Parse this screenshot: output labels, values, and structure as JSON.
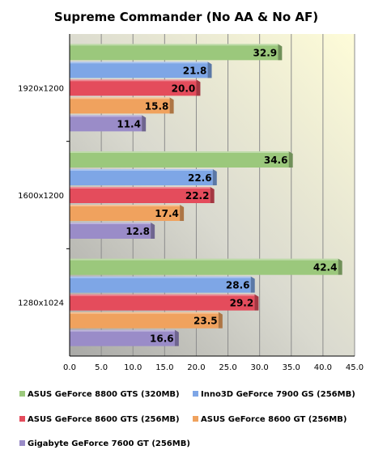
{
  "chart_data": {
    "type": "bar",
    "orientation": "horizontal",
    "title": "Supreme Commander  (No AA & No AF)",
    "xlabel": "",
    "ylabel": "",
    "xlim": [
      0,
      45
    ],
    "x_ticks": [
      "0.0",
      "5.0",
      "10.0",
      "15.0",
      "20.0",
      "25.0",
      "30.0",
      "35.0",
      "40.0",
      "45.0"
    ],
    "grid": true,
    "legend_position": "bottom",
    "categories": [
      "1920x1200",
      "1600x1200",
      "1280x1024"
    ],
    "series": [
      {
        "name": "ASUS GeForce 8800 GTS (320MB)",
        "color": "#9bc87c",
        "values": [
          32.9,
          34.6,
          42.4
        ]
      },
      {
        "name": "Inno3D GeForce 7900 GS (256MB)",
        "color": "#7ea6e6",
        "values": [
          21.8,
          22.6,
          28.6
        ]
      },
      {
        "name": "ASUS GeForce 8600 GTS (256MB)",
        "color": "#e44c5c",
        "values": [
          20.0,
          22.2,
          29.2
        ]
      },
      {
        "name": "ASUS GeForce 8600 GT (256MB)",
        "color": "#f0a25e",
        "values": [
          15.8,
          17.4,
          23.5
        ]
      },
      {
        "name": "Gigabyte GeForce 7600 GT (256MB)",
        "color": "#9a8cc8",
        "values": [
          11.4,
          12.8,
          16.6
        ]
      }
    ]
  }
}
